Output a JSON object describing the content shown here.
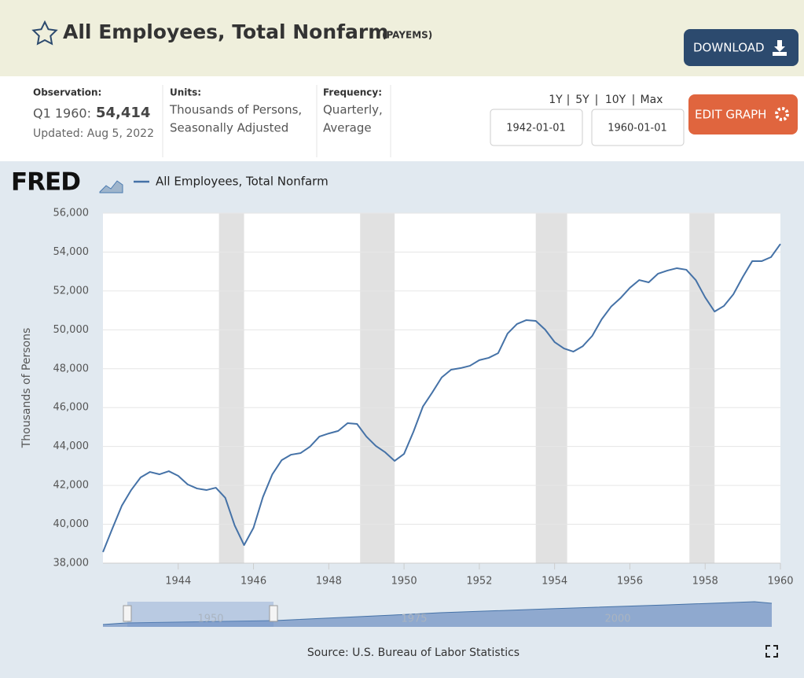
{
  "header": {
    "title": "All Employees, Total Nonfarm",
    "series_id": "(PAYEMS)",
    "download": "DOWNLOAD"
  },
  "info": {
    "observation_label": "Observation:",
    "observation_period": "Q1 1960:",
    "observation_value": "54,414",
    "updated": "Updated: Aug 5, 2022",
    "units_label": "Units:",
    "units": [
      "Thousands of Persons,",
      "Seasonally Adjusted"
    ],
    "frequency_label": "Frequency:",
    "frequency": [
      "Quarterly,",
      "Average"
    ]
  },
  "controls": {
    "ranges": [
      "1Y",
      "5Y",
      "10Y",
      "Max"
    ],
    "start_date": "1942-01-01",
    "end_date": "1960-01-01",
    "edit_graph": "EDIT GRAPH"
  },
  "chart_data": {
    "type": "line",
    "logo": "FRED",
    "ylabel": "Thousands of Persons",
    "x": [
      1942,
      1942.25,
      1942.5,
      1942.75,
      1943,
      1943.25,
      1943.5,
      1943.75,
      1944,
      1944.25,
      1944.5,
      1944.75,
      1945,
      1945.25,
      1945.5,
      1945.75,
      1946,
      1946.25,
      1946.5,
      1946.75,
      1947,
      1947.25,
      1947.5,
      1947.75,
      1948,
      1948.25,
      1948.5,
      1948.75,
      1949,
      1949.25,
      1949.5,
      1949.75,
      1950,
      1950.25,
      1950.5,
      1950.75,
      1951,
      1951.25,
      1951.5,
      1951.75,
      1952,
      1952.25,
      1952.5,
      1952.75,
      1953,
      1953.25,
      1953.5,
      1953.75,
      1954,
      1954.25,
      1954.5,
      1954.75,
      1955,
      1955.25,
      1955.5,
      1955.75,
      1956,
      1956.25,
      1956.5,
      1956.75,
      1957,
      1957.25,
      1957.5,
      1957.75,
      1958,
      1958.25,
      1958.5,
      1958.75,
      1959,
      1959.25,
      1959.5,
      1959.75,
      1960
    ],
    "series": [
      {
        "name": "All Employees, Total Nonfarm",
        "color": "#4572a7",
        "values": [
          38570,
          39780,
          40950,
          41760,
          42410,
          42690,
          42570,
          42730,
          42490,
          42050,
          41840,
          41760,
          41880,
          41360,
          39940,
          38930,
          39820,
          41400,
          42570,
          43300,
          43580,
          43660,
          43990,
          44510,
          44670,
          44800,
          45200,
          45160,
          44510,
          44030,
          43700,
          43260,
          43620,
          44760,
          46050,
          46780,
          47550,
          47950,
          48030,
          48150,
          48440,
          48560,
          48800,
          49810,
          50300,
          50500,
          50460,
          50010,
          49370,
          49040,
          48880,
          49160,
          49690,
          50540,
          51190,
          51630,
          52160,
          52560,
          52440,
          52890,
          53050,
          53170,
          53090,
          52560,
          51670,
          50940,
          51230,
          51830,
          52720,
          53530,
          53530,
          53740,
          54414
        ]
      }
    ],
    "recessions": [
      [
        1945.083,
        1945.75
      ],
      [
        1948.833,
        1949.75
      ],
      [
        1953.5,
        1954.333
      ],
      [
        1957.583,
        1958.25
      ]
    ],
    "recession_color": "#e1e1e1",
    "xlim": [
      1942,
      1960
    ],
    "xticks": [
      1944,
      1946,
      1948,
      1950,
      1952,
      1954,
      1956,
      1958,
      1960
    ],
    "ylim": [
      38000,
      56000
    ],
    "yticks": [
      {
        "value": 38000,
        "label": "38,000"
      },
      {
        "value": 40000,
        "label": "40,000"
      },
      {
        "value": 42000,
        "label": "42,000"
      },
      {
        "value": 44000,
        "label": "44,000"
      },
      {
        "value": 46000,
        "label": "46,000"
      },
      {
        "value": 48000,
        "label": "48,000"
      },
      {
        "value": 50000,
        "label": "50,000"
      },
      {
        "value": 52000,
        "label": "52,000"
      },
      {
        "value": 54000,
        "label": "54,000"
      },
      {
        "value": 56000,
        "label": "56,000"
      }
    ],
    "grid": true
  },
  "navigator": {
    "labels": [
      "1950",
      "1975",
      "2000"
    ]
  },
  "footer": {
    "source": "Source: U.S. Bureau of Labor Statistics"
  }
}
